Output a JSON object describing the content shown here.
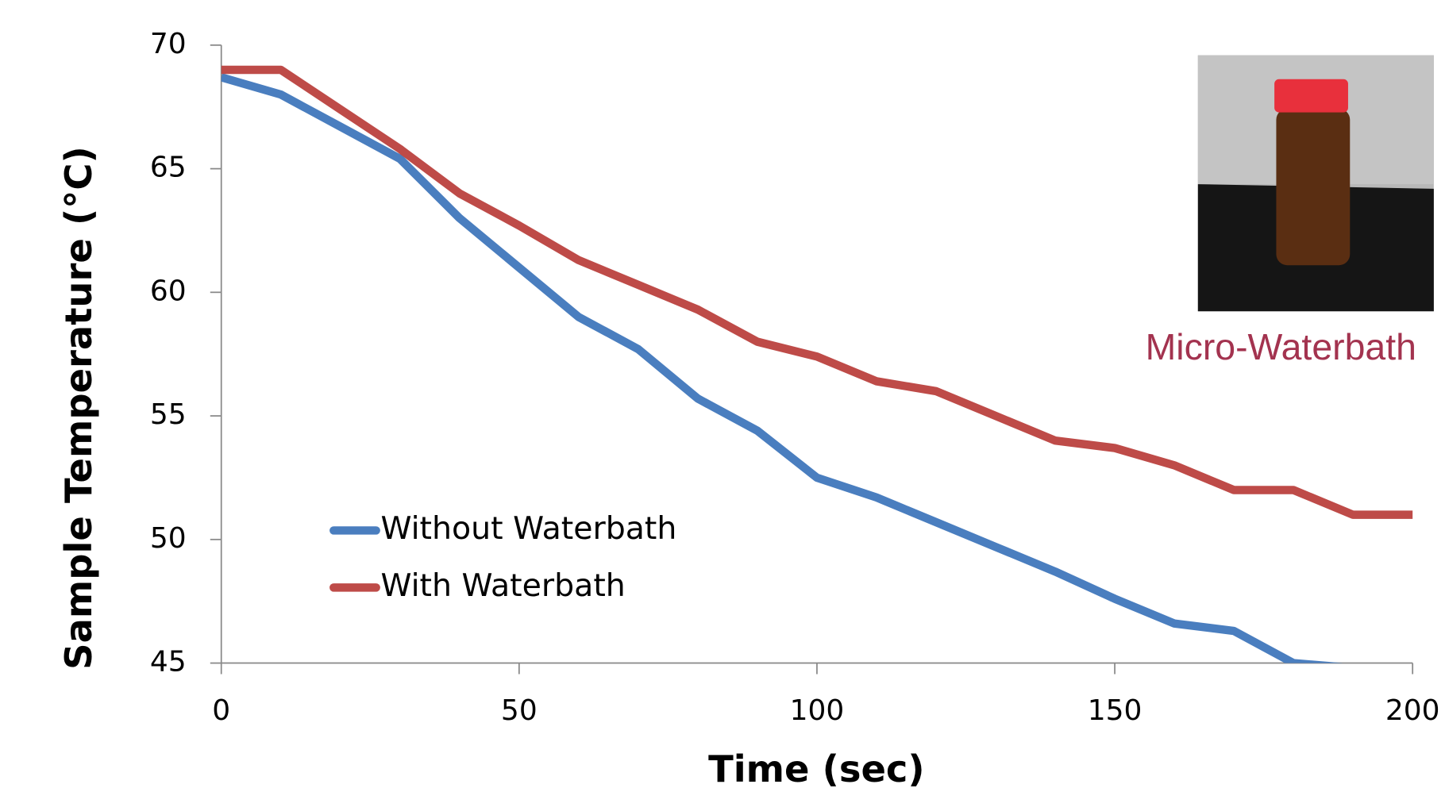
{
  "chart_data": {
    "type": "line",
    "x_label": "Time (sec)",
    "y_label": "Sample Temperature (°C)",
    "annotation": "Micro-Waterbath",
    "x": [
      0,
      10,
      20,
      30,
      40,
      50,
      60,
      70,
      80,
      90,
      100,
      110,
      120,
      130,
      140,
      150,
      160,
      170,
      180,
      190,
      200
    ],
    "series": [
      {
        "name": "Without Waterbath",
        "color": "#4a7ebf",
        "values": [
          68.7,
          68.0,
          66.7,
          65.4,
          63.0,
          61.0,
          59.0,
          57.7,
          55.7,
          54.4,
          52.5,
          51.7,
          50.7,
          49.7,
          48.7,
          47.6,
          46.6,
          46.3,
          45.0,
          44.8,
          null
        ]
      },
      {
        "name": "With Waterbath",
        "color": "#be4b48",
        "values": [
          69.0,
          69.0,
          67.4,
          65.8,
          64.0,
          62.7,
          61.3,
          60.3,
          59.3,
          58.0,
          57.4,
          56.4,
          56.0,
          55.0,
          54.0,
          53.7,
          53.0,
          52.0,
          52.0,
          51.0,
          51.0
        ]
      }
    ],
    "xlim": [
      0,
      200
    ],
    "xticks": [
      0,
      50,
      100,
      150,
      200
    ],
    "ylim": [
      45,
      70
    ],
    "yticks": [
      45,
      50,
      55,
      60,
      65,
      70
    ]
  }
}
